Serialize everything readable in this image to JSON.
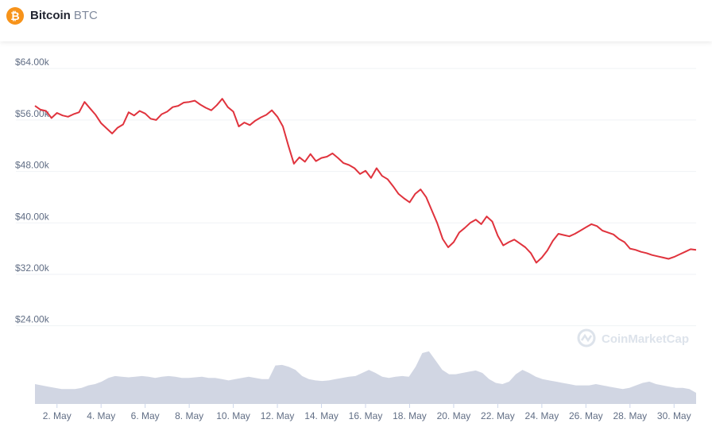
{
  "header": {
    "icon_glyph": "₿",
    "name": "Bitcoin",
    "symbol": "BTC",
    "brand_color": "#f7931a"
  },
  "watermark": "CoinMarketCap",
  "colors": {
    "price_line": "#e0333d",
    "volume": "#d1d6e3",
    "grid": "#eff2f5",
    "tick": "#616e85"
  },
  "chart_data": {
    "type": "line",
    "xlabel": "",
    "ylabel": "",
    "grid": true,
    "ylim": [
      20000,
      66000
    ],
    "y_ticks": [
      {
        "v": 64000,
        "label": "$64.00k"
      },
      {
        "v": 56000,
        "label": "$56.00k"
      },
      {
        "v": 48000,
        "label": "$48.00k"
      },
      {
        "v": 40000,
        "label": "$40.00k"
      },
      {
        "v": 32000,
        "label": "$32.00k"
      },
      {
        "v": 24000,
        "label": "$24.00k"
      }
    ],
    "x_range": [
      "2021-05-01",
      "2021-05-31"
    ],
    "x_ticks": [
      {
        "d": "2021-05-02",
        "label": "2. May"
      },
      {
        "d": "2021-05-04",
        "label": "4. May"
      },
      {
        "d": "2021-05-06",
        "label": "6. May"
      },
      {
        "d": "2021-05-08",
        "label": "8. May"
      },
      {
        "d": "2021-05-10",
        "label": "10. May"
      },
      {
        "d": "2021-05-12",
        "label": "12. May"
      },
      {
        "d": "2021-05-14",
        "label": "14. May"
      },
      {
        "d": "2021-05-16",
        "label": "16. May"
      },
      {
        "d": "2021-05-18",
        "label": "18. May"
      },
      {
        "d": "2021-05-20",
        "label": "20. May"
      },
      {
        "d": "2021-05-22",
        "label": "22. May"
      },
      {
        "d": "2021-05-24",
        "label": "24. May"
      },
      {
        "d": "2021-05-26",
        "label": "26. May"
      },
      {
        "d": "2021-05-28",
        "label": "28. May"
      },
      {
        "d": "2021-05-30",
        "label": "30. May"
      }
    ],
    "series": [
      {
        "color": "#e0333d",
        "points": [
          [
            "2021-05-01 00:00",
            58200
          ],
          [
            "2021-05-01 06:00",
            57600
          ],
          [
            "2021-05-01 12:00",
            57400
          ],
          [
            "2021-05-01 18:00",
            56300
          ],
          [
            "2021-05-02 00:00",
            57100
          ],
          [
            "2021-05-02 06:00",
            56700
          ],
          [
            "2021-05-02 12:00",
            56500
          ],
          [
            "2021-05-02 18:00",
            56900
          ],
          [
            "2021-05-03 00:00",
            57200
          ],
          [
            "2021-05-03 06:00",
            58800
          ],
          [
            "2021-05-03 12:00",
            57800
          ],
          [
            "2021-05-03 18:00",
            56800
          ],
          [
            "2021-05-04 00:00",
            55500
          ],
          [
            "2021-05-04 06:00",
            54700
          ],
          [
            "2021-05-04 12:00",
            53900
          ],
          [
            "2021-05-04 18:00",
            54800
          ],
          [
            "2021-05-05 00:00",
            55300
          ],
          [
            "2021-05-05 06:00",
            57200
          ],
          [
            "2021-05-05 12:00",
            56700
          ],
          [
            "2021-05-05 18:00",
            57400
          ],
          [
            "2021-05-06 00:00",
            57000
          ],
          [
            "2021-05-06 06:00",
            56200
          ],
          [
            "2021-05-06 12:00",
            56000
          ],
          [
            "2021-05-06 18:00",
            56900
          ],
          [
            "2021-05-07 00:00",
            57300
          ],
          [
            "2021-05-07 06:00",
            58000
          ],
          [
            "2021-05-07 12:00",
            58200
          ],
          [
            "2021-05-07 18:00",
            58700
          ],
          [
            "2021-05-08 00:00",
            58800
          ],
          [
            "2021-05-08 06:00",
            59000
          ],
          [
            "2021-05-08 12:00",
            58400
          ],
          [
            "2021-05-08 18:00",
            57900
          ],
          [
            "2021-05-09 00:00",
            57500
          ],
          [
            "2021-05-09 06:00",
            58300
          ],
          [
            "2021-05-09 12:00",
            59300
          ],
          [
            "2021-05-09 18:00",
            58000
          ],
          [
            "2021-05-10 00:00",
            57300
          ],
          [
            "2021-05-10 06:00",
            55000
          ],
          [
            "2021-05-10 12:00",
            55600
          ],
          [
            "2021-05-10 18:00",
            55200
          ],
          [
            "2021-05-11 00:00",
            55900
          ],
          [
            "2021-05-11 06:00",
            56400
          ],
          [
            "2021-05-11 12:00",
            56800
          ],
          [
            "2021-05-11 18:00",
            57500
          ],
          [
            "2021-05-12 00:00",
            56500
          ],
          [
            "2021-05-12 06:00",
            55000
          ],
          [
            "2021-05-12 12:00",
            52000
          ],
          [
            "2021-05-12 18:00",
            49200
          ],
          [
            "2021-05-13 00:00",
            50200
          ],
          [
            "2021-05-13 06:00",
            49500
          ],
          [
            "2021-05-13 12:00",
            50700
          ],
          [
            "2021-05-13 18:00",
            49600
          ],
          [
            "2021-05-14 00:00",
            50100
          ],
          [
            "2021-05-14 06:00",
            50300
          ],
          [
            "2021-05-14 12:00",
            50800
          ],
          [
            "2021-05-14 18:00",
            50100
          ],
          [
            "2021-05-15 00:00",
            49300
          ],
          [
            "2021-05-15 06:00",
            49000
          ],
          [
            "2021-05-15 12:00",
            48500
          ],
          [
            "2021-05-15 18:00",
            47600
          ],
          [
            "2021-05-16 00:00",
            48100
          ],
          [
            "2021-05-16 06:00",
            47000
          ],
          [
            "2021-05-16 12:00",
            48500
          ],
          [
            "2021-05-16 18:00",
            47300
          ],
          [
            "2021-05-17 00:00",
            46800
          ],
          [
            "2021-05-17 06:00",
            45700
          ],
          [
            "2021-05-17 12:00",
            44500
          ],
          [
            "2021-05-17 18:00",
            43800
          ],
          [
            "2021-05-18 00:00",
            43200
          ],
          [
            "2021-05-18 06:00",
            44500
          ],
          [
            "2021-05-18 12:00",
            45200
          ],
          [
            "2021-05-18 18:00",
            44000
          ],
          [
            "2021-05-19 00:00",
            42000
          ],
          [
            "2021-05-19 06:00",
            40000
          ],
          [
            "2021-05-19 12:00",
            37500
          ],
          [
            "2021-05-19 18:00",
            36200
          ],
          [
            "2021-05-20 00:00",
            37000
          ],
          [
            "2021-05-20 06:00",
            38500
          ],
          [
            "2021-05-20 12:00",
            39200
          ],
          [
            "2021-05-20 18:00",
            40000
          ],
          [
            "2021-05-21 00:00",
            40500
          ],
          [
            "2021-05-21 06:00",
            39800
          ],
          [
            "2021-05-21 12:00",
            41000
          ],
          [
            "2021-05-21 18:00",
            40200
          ],
          [
            "2021-05-22 00:00",
            38000
          ],
          [
            "2021-05-22 06:00",
            36500
          ],
          [
            "2021-05-22 12:00",
            37000
          ],
          [
            "2021-05-22 18:00",
            37400
          ],
          [
            "2021-05-23 00:00",
            36800
          ],
          [
            "2021-05-23 06:00",
            36200
          ],
          [
            "2021-05-23 12:00",
            35300
          ],
          [
            "2021-05-23 18:00",
            33800
          ],
          [
            "2021-05-24 00:00",
            34600
          ],
          [
            "2021-05-24 06:00",
            35700
          ],
          [
            "2021-05-24 12:00",
            37200
          ],
          [
            "2021-05-24 18:00",
            38300
          ],
          [
            "2021-05-25 00:00",
            38100
          ],
          [
            "2021-05-25 06:00",
            37900
          ],
          [
            "2021-05-25 12:00",
            38300
          ],
          [
            "2021-05-25 18:00",
            38800
          ],
          [
            "2021-05-26 00:00",
            39300
          ],
          [
            "2021-05-26 06:00",
            39800
          ],
          [
            "2021-05-26 12:00",
            39500
          ],
          [
            "2021-05-26 18:00",
            38800
          ],
          [
            "2021-05-27 00:00",
            38500
          ],
          [
            "2021-05-27 06:00",
            38200
          ],
          [
            "2021-05-27 12:00",
            37500
          ],
          [
            "2021-05-27 18:00",
            37000
          ],
          [
            "2021-05-28 00:00",
            36000
          ],
          [
            "2021-05-28 06:00",
            35800
          ],
          [
            "2021-05-28 12:00",
            35500
          ],
          [
            "2021-05-28 18:00",
            35300
          ],
          [
            "2021-05-29 00:00",
            35000
          ],
          [
            "2021-05-29 06:00",
            34800
          ],
          [
            "2021-05-29 12:00",
            34600
          ],
          [
            "2021-05-29 18:00",
            34400
          ],
          [
            "2021-05-30 00:00",
            34700
          ],
          [
            "2021-05-30 06:00",
            35100
          ],
          [
            "2021-05-30 12:00",
            35500
          ],
          [
            "2021-05-30 18:00",
            35900
          ],
          [
            "2021-05-31 00:00",
            35800
          ]
        ]
      }
    ],
    "volume_relative": [
      0.32,
      0.3,
      0.28,
      0.26,
      0.24,
      0.24,
      0.24,
      0.26,
      0.3,
      0.32,
      0.36,
      0.42,
      0.45,
      0.44,
      0.43,
      0.44,
      0.45,
      0.44,
      0.42,
      0.44,
      0.45,
      0.44,
      0.42,
      0.42,
      0.43,
      0.44,
      0.42,
      0.42,
      0.4,
      0.38,
      0.4,
      0.42,
      0.44,
      0.42,
      0.4,
      0.4,
      0.62,
      0.63,
      0.6,
      0.55,
      0.45,
      0.4,
      0.38,
      0.37,
      0.38,
      0.4,
      0.42,
      0.44,
      0.45,
      0.5,
      0.55,
      0.5,
      0.44,
      0.42,
      0.44,
      0.45,
      0.44,
      0.6,
      0.82,
      0.85,
      0.7,
      0.55,
      0.48,
      0.48,
      0.5,
      0.52,
      0.54,
      0.5,
      0.4,
      0.34,
      0.32,
      0.36,
      0.48,
      0.55,
      0.5,
      0.44,
      0.4,
      0.38,
      0.36,
      0.34,
      0.32,
      0.3,
      0.3,
      0.3,
      0.32,
      0.3,
      0.28,
      0.26,
      0.24,
      0.26,
      0.3,
      0.34,
      0.36,
      0.32,
      0.3,
      0.28,
      0.26,
      0.26,
      0.24,
      0.18
    ]
  }
}
